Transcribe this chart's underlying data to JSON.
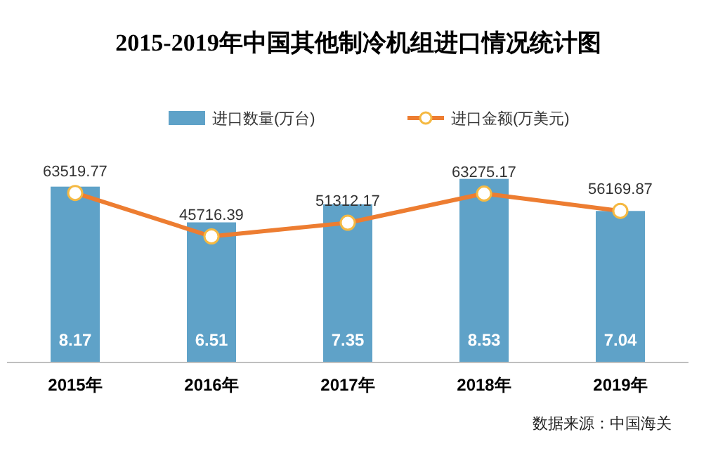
{
  "chart_data": {
    "type": "bar",
    "title": "2015-2019年中国其他制冷机组进口情况统计图",
    "categories": [
      "2015年",
      "2016年",
      "2017年",
      "2018年",
      "2019年"
    ],
    "series": [
      {
        "name": "进口数量(万台)",
        "color": "#5fa2c8",
        "values": [
          8.17,
          6.51,
          7.35,
          8.53,
          7.04
        ]
      },
      {
        "name": "进口金额(万美元)",
        "type": "line",
        "axis": "y2",
        "color": "#ed7d31",
        "marker": "circle",
        "values": [
          63519.77,
          45716.39,
          51312.17,
          63275.17,
          56169.87
        ]
      }
    ],
    "data_labels": true,
    "legend": "top",
    "annotations": [
      "数据来源：中国海关"
    ]
  }
}
